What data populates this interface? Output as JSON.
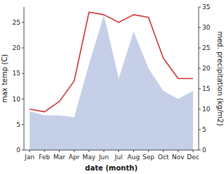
{
  "chart_data": {
    "type": "line",
    "categories": [
      "Jan",
      "Feb",
      "Mar",
      "Apr",
      "May",
      "Jun",
      "Jul",
      "Aug",
      "Sep",
      "Oct",
      "Nov",
      "Dec"
    ],
    "xlabel": "date (month)",
    "ylabel": "max temp (C)",
    "y2label": "med. precipitation (kg/m2)",
    "series": [
      {
        "type": "area",
        "axis": "y2",
        "color": "#c5cfe8",
        "values": [
          9.5,
          8.5,
          8.5,
          8.0,
          21.0,
          33.0,
          17.5,
          29.0,
          20.0,
          14.5,
          12.5,
          14.5
        ]
      },
      {
        "type": "line",
        "color": "#cc3333",
        "values": [
          8.0,
          7.5,
          9.5,
          13.5,
          27.0,
          26.5,
          25.0,
          26.5,
          26.0,
          18.0,
          14.0,
          14.0
        ]
      }
    ],
    "ylim": [
      0,
      28
    ],
    "yticks": [
      0,
      5,
      10,
      15,
      20,
      25
    ],
    "y2lim": [
      0,
      35
    ],
    "y2ticks": [
      0,
      5,
      10,
      15,
      20,
      25,
      30,
      35
    ]
  }
}
